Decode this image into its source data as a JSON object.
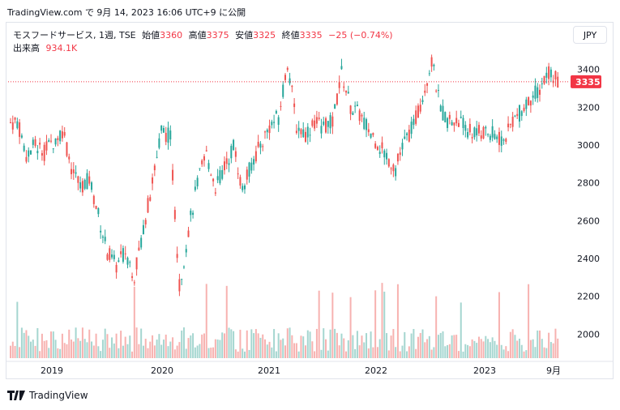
{
  "header": {
    "source_line": "TradingView.com で 9月 14, 2023 16:06 UTC+9 に公開"
  },
  "legend": {
    "symbol": "モスフードサービス, 1週, TSE",
    "open_label": "始値",
    "open_value": "3360",
    "high_label": "高値",
    "high_value": "3375",
    "low_label": "安値",
    "low_value": "3325",
    "close_label": "終値",
    "close_value": "3335",
    "change": "−25 (−0.74%)",
    "volume_label": "出来高",
    "volume_value": "934.1K"
  },
  "currency_button": "JPY",
  "footer": {
    "brand": "TradingView"
  },
  "colors": {
    "up": "#26a69a",
    "down": "#ef5350",
    "price_line": "#f23645"
  },
  "chart_data": {
    "type": "candlestick",
    "title": "モスフードサービス, 1週, TSE",
    "y_ticks": [
      2000,
      2200,
      2400,
      2600,
      2800,
      3000,
      3200,
      3400
    ],
    "y_range": [
      1860,
      3510
    ],
    "x_ticks": [
      "2019",
      "2020",
      "2021",
      "2022",
      "2023",
      "9月"
    ],
    "last_price": 3335,
    "last_price_label": "3335",
    "series": [
      {
        "date": "2018-09",
        "close": 3120
      },
      {
        "date": "2018-10",
        "close": 2950
      },
      {
        "date": "2018-11",
        "close": 3000
      },
      {
        "date": "2018-12",
        "close": 2960
      },
      {
        "date": "2019-01",
        "close": 3020
      },
      {
        "date": "2019-02",
        "close": 3080
      },
      {
        "date": "2019-03",
        "close": 2880
      },
      {
        "date": "2019-04",
        "close": 2780
      },
      {
        "date": "2019-05",
        "close": 2820
      },
      {
        "date": "2019-06",
        "close": 2630
      },
      {
        "date": "2019-07",
        "close": 2430
      },
      {
        "date": "2019-08",
        "close": 2360
      },
      {
        "date": "2019-09",
        "close": 2440
      },
      {
        "date": "2019-10",
        "close": 2310
      },
      {
        "date": "2019-11",
        "close": 2560
      },
      {
        "date": "2019-12",
        "close": 2800
      },
      {
        "date": "2020-01",
        "close": 3080
      },
      {
        "date": "2020-02",
        "close": 3040
      },
      {
        "date": "2020-03",
        "close": 2250
      },
      {
        "date": "2020-04",
        "close": 2550
      },
      {
        "date": "2020-05",
        "close": 2800
      },
      {
        "date": "2020-06",
        "close": 2950
      },
      {
        "date": "2020-07",
        "close": 2780
      },
      {
        "date": "2020-08",
        "close": 2880
      },
      {
        "date": "2020-09",
        "close": 3000
      },
      {
        "date": "2020-10",
        "close": 2760
      },
      {
        "date": "2020-11",
        "close": 2900
      },
      {
        "date": "2020-12",
        "close": 3000
      },
      {
        "date": "2021-01",
        "close": 3100
      },
      {
        "date": "2021-02",
        "close": 3150
      },
      {
        "date": "2021-03",
        "close": 3440
      },
      {
        "date": "2021-04",
        "close": 3100
      },
      {
        "date": "2021-05",
        "close": 3060
      },
      {
        "date": "2021-06",
        "close": 3120
      },
      {
        "date": "2021-07",
        "close": 3100
      },
      {
        "date": "2021-08",
        "close": 3120
      },
      {
        "date": "2021-09",
        "close": 3380
      },
      {
        "date": "2021-10",
        "close": 3200
      },
      {
        "date": "2021-11",
        "close": 3160
      },
      {
        "date": "2021-12",
        "close": 3080
      },
      {
        "date": "2022-01",
        "close": 3010
      },
      {
        "date": "2022-02",
        "close": 2940
      },
      {
        "date": "2022-03",
        "close": 2880
      },
      {
        "date": "2022-04",
        "close": 3020
      },
      {
        "date": "2022-05",
        "close": 3100
      },
      {
        "date": "2022-06",
        "close": 3260
      },
      {
        "date": "2022-07",
        "close": 3450
      },
      {
        "date": "2022-08",
        "close": 3180
      },
      {
        "date": "2022-09",
        "close": 3120
      },
      {
        "date": "2022-10",
        "close": 3130
      },
      {
        "date": "2022-11",
        "close": 3080
      },
      {
        "date": "2022-12",
        "close": 3060
      },
      {
        "date": "2023-01",
        "close": 3070
      },
      {
        "date": "2023-02",
        "close": 3050
      },
      {
        "date": "2023-03",
        "close": 3020
      },
      {
        "date": "2023-04",
        "close": 3130
      },
      {
        "date": "2023-05",
        "close": 3180
      },
      {
        "date": "2023-06",
        "close": 3250
      },
      {
        "date": "2023-07",
        "close": 3300
      },
      {
        "date": "2023-08",
        "close": 3390
      },
      {
        "date": "2023-09",
        "close": 3335
      }
    ]
  }
}
